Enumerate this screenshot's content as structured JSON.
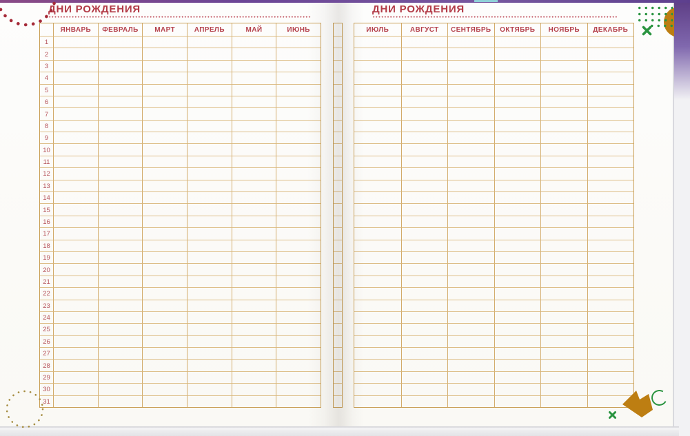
{
  "book": {
    "left_page": {
      "title": "ДНИ РОЖДЕНИЯ",
      "months": [
        "ЯНВАРЬ",
        "ФЕВРАЛЬ",
        "МАРТ",
        "АПРЕЛЬ",
        "МАЙ",
        "ИЮНЬ"
      ],
      "days": [
        "1",
        "2",
        "3",
        "4",
        "5",
        "6",
        "7",
        "8",
        "9",
        "10",
        "11",
        "12",
        "13",
        "14",
        "15",
        "16",
        "17",
        "18",
        "19",
        "20",
        "21",
        "22",
        "23",
        "24",
        "25",
        "26",
        "27",
        "28",
        "29",
        "30",
        "31"
      ]
    },
    "right_page": {
      "title": "ДНИ РОЖДЕНИЯ",
      "months": [
        "ИЮЛЬ",
        "АВГУСТ",
        "СЕНТЯБРЬ",
        "ОКТЯБРЬ",
        "НОЯБРЬ",
        "ДЕКАБРЬ"
      ],
      "day_column_note": "day column hidden in gutter"
    }
  },
  "colors": {
    "title_red": "#b23a46",
    "month_header_red": "#b5424d",
    "day_number_red": "#b5525a",
    "table_border_gold": "#c99f55",
    "table_grid_gold": "#d2ab6a",
    "accent_green": "#2a9440",
    "accent_gold": "#bd7e12",
    "dot_red": "#a52a38",
    "dot_gold": "#a58c40",
    "background_purple": "#6b4596"
  },
  "decorations": {
    "top_left": "red-dotted-arc",
    "bottom_left": "gold-dotted-circle",
    "top_right": [
      "green-dots-grid",
      "green-cross-icon",
      "gold-corner-circle"
    ],
    "bottom_right": [
      "gold-arrow-icon",
      "green-open-circle-icon",
      "green-cross-small-icon"
    ]
  }
}
